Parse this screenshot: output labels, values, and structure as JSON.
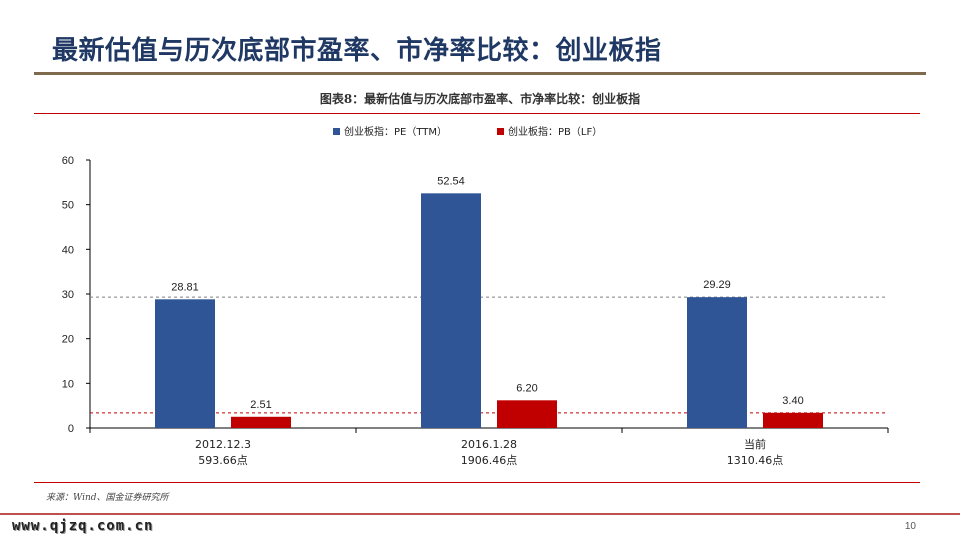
{
  "slide": {
    "title": "最新估值与历次底部市盈率、市净率比较：创业板指",
    "page_number": "10",
    "watermark": "www.qjzq.com.cn"
  },
  "figure": {
    "title": "图表8：最新估值与历次底部市盈率、市净率比较：创业板指",
    "source": "来源：Wind、国金证券研究所"
  },
  "chart_data": {
    "type": "bar",
    "categories": [
      [
        "2012.12.3",
        "593.66点"
      ],
      [
        "2016.1.28",
        "1906.46点"
      ],
      [
        "当前",
        "1310.46点"
      ]
    ],
    "series": [
      {
        "name": "创业板指：PE（TTM）",
        "values": [
          28.81,
          52.54,
          29.29
        ],
        "labels": [
          "28.81",
          "52.54",
          "29.29"
        ],
        "color": "#2f5597"
      },
      {
        "name": "创业板指：PB（LF）",
        "values": [
          2.51,
          6.2,
          3.4
        ],
        "labels": [
          "2.51",
          "6.20",
          "3.40"
        ],
        "color": "#c00000"
      }
    ],
    "reference_lines": [
      {
        "value": 29.29,
        "color": "#7f7f7f",
        "style": "dashed"
      },
      {
        "value": 3.4,
        "color": "#c00000",
        "style": "dashed"
      }
    ],
    "ylim": [
      0,
      60
    ],
    "yticks": [
      "0",
      "10",
      "20",
      "30",
      "40",
      "50",
      "60"
    ],
    "legend": "top-center",
    "grid": false
  }
}
